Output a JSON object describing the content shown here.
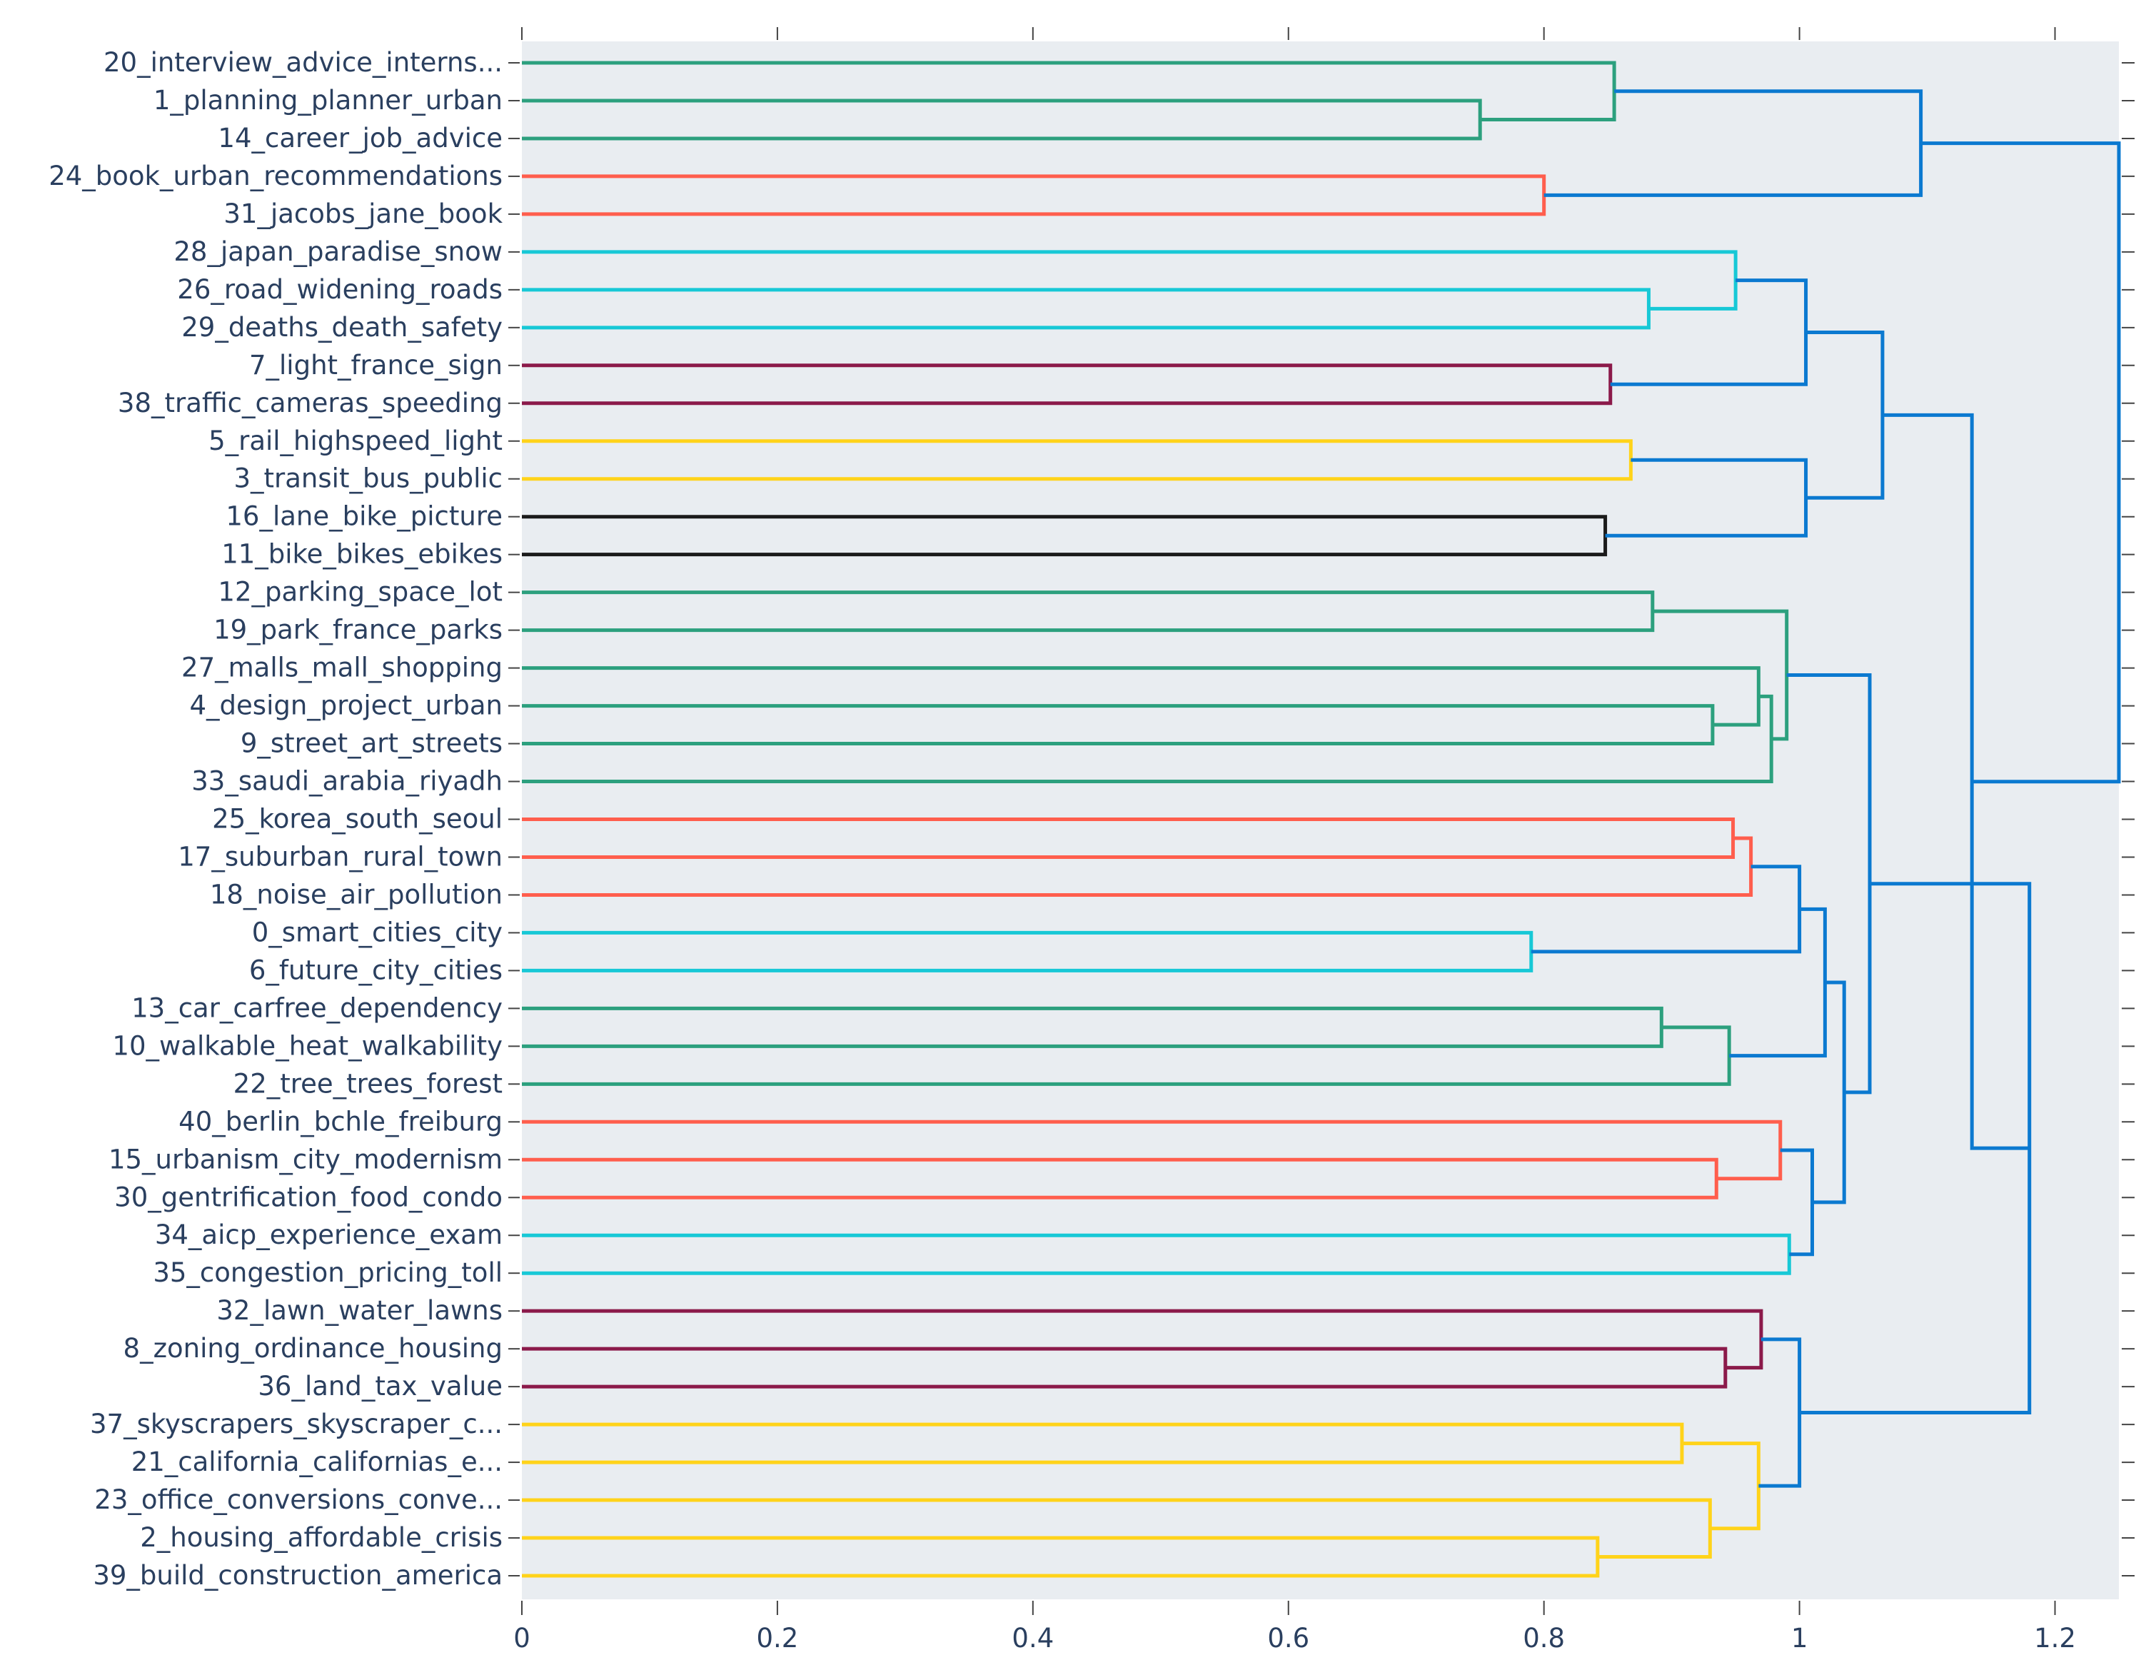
{
  "chart_data": {
    "type": "dendrogram",
    "orientation": "horizontal",
    "title": "",
    "xlabel": "",
    "ylabel": "",
    "xlim": [
      0,
      1.25
    ],
    "xticks": [
      0,
      0.2,
      0.4,
      0.6,
      0.8,
      1,
      1.2
    ],
    "xtick_labels": [
      "0",
      "0.2",
      "0.4",
      "0.6",
      "0.8",
      "1",
      "1.2"
    ],
    "leaves": [
      "20_interview_advice_interns...",
      "1_planning_planner_urban",
      "14_career_job_advice",
      "24_book_urban_recommendations",
      "31_jacobs_jane_book",
      "28_japan_paradise_snow",
      "26_road_widening_roads",
      "29_deaths_death_safety",
      "7_light_france_sign",
      "38_traffic_cameras_speeding",
      "5_rail_highspeed_light",
      "3_transit_bus_public",
      "16_lane_bike_picture",
      "11_bike_bikes_ebikes",
      "12_parking_space_lot",
      "19_park_france_parks",
      "27_malls_mall_shopping",
      "4_design_project_urban",
      "9_street_art_streets",
      "33_saudi_arabia_riyadh",
      "25_korea_south_seoul",
      "17_suburban_rural_town",
      "18_noise_air_pollution",
      "0_smart_cities_city",
      "6_future_city_cities",
      "13_car_carfree_dependency",
      "10_walkable_heat_walkability",
      "22_tree_trees_forest",
      "40_berlin_bchle_freiburg",
      "15_urbanism_city_modernism",
      "30_gentrification_food_condo",
      "34_aicp_experience_exam",
      "35_congestion_pricing_toll",
      "32_lawn_water_lawns",
      "8_zoning_ordinance_housing",
      "36_land_tax_value",
      "37_skyscrapers_skyscraper_c...",
      "21_california_californias_e...",
      "23_office_conversions_conve...",
      "2_housing_affordable_crisis",
      "39_build_construction_america"
    ],
    "colors": {
      "green": "#2ca07e",
      "red": "#ff5e4d",
      "cyan": "#17c8d6",
      "maroon": "#8b1a4a",
      "yellow": "#ffd31a",
      "black": "#1b1b1b",
      "blue": "#0b79d0",
      "plot_bg": "#e9edf1",
      "text": "#2a3f5f"
    },
    "merges": [
      {
        "id": "A",
        "left": 1,
        "right": 2,
        "height": 0.75,
        "color": "green"
      },
      {
        "id": "B",
        "left": 0,
        "right": "A",
        "height": 0.855,
        "color": "green"
      },
      {
        "id": "C",
        "left": 3,
        "right": 4,
        "height": 0.8,
        "color": "red"
      },
      {
        "id": "D",
        "left": "B",
        "right": "C",
        "height": 1.095,
        "color": "blue"
      },
      {
        "id": "E",
        "left": 6,
        "right": 7,
        "height": 0.882,
        "color": "cyan"
      },
      {
        "id": "F",
        "left": 5,
        "right": "E",
        "height": 0.95,
        "color": "cyan"
      },
      {
        "id": "G",
        "left": 8,
        "right": 9,
        "height": 0.852,
        "color": "maroon"
      },
      {
        "id": "H",
        "left": "F",
        "right": "G",
        "height": 1.005,
        "color": "blue"
      },
      {
        "id": "I",
        "left": 10,
        "right": 11,
        "height": 0.868,
        "color": "yellow"
      },
      {
        "id": "J",
        "left": 12,
        "right": 13,
        "height": 0.848,
        "color": "black"
      },
      {
        "id": "K",
        "left": "I",
        "right": "J",
        "height": 1.005,
        "color": "blue"
      },
      {
        "id": "L",
        "left": "H",
        "right": "K",
        "height": 1.065,
        "color": "blue"
      },
      {
        "id": "M",
        "left": 14,
        "right": 15,
        "height": 0.885,
        "color": "green"
      },
      {
        "id": "N",
        "left": 17,
        "right": 18,
        "height": 0.932,
        "color": "green"
      },
      {
        "id": "O",
        "left": 16,
        "right": "N",
        "height": 0.968,
        "color": "green"
      },
      {
        "id": "P",
        "left": "O",
        "right": 19,
        "height": 0.978,
        "color": "green"
      },
      {
        "id": "Q",
        "left": "M",
        "right": "P",
        "height": 0.99,
        "color": "green"
      },
      {
        "id": "R",
        "left": 20,
        "right": 21,
        "height": 0.948,
        "color": "red"
      },
      {
        "id": "S",
        "left": "R",
        "right": 22,
        "height": 0.962,
        "color": "red"
      },
      {
        "id": "T",
        "left": 23,
        "right": 24,
        "height": 0.79,
        "color": "cyan"
      },
      {
        "id": "U",
        "left": "S",
        "right": "T",
        "height": 1.0,
        "color": "blue"
      },
      {
        "id": "V",
        "left": 25,
        "right": 26,
        "height": 0.892,
        "color": "green"
      },
      {
        "id": "W",
        "left": "V",
        "right": 27,
        "height": 0.945,
        "color": "green"
      },
      {
        "id": "X",
        "left": "U",
        "right": "W",
        "height": 1.02,
        "color": "blue"
      },
      {
        "id": "Y",
        "left": 29,
        "right": 30,
        "height": 0.935,
        "color": "red"
      },
      {
        "id": "Z",
        "left": 28,
        "right": "Y",
        "height": 0.985,
        "color": "red"
      },
      {
        "id": "AA",
        "left": 31,
        "right": 32,
        "height": 0.992,
        "color": "cyan"
      },
      {
        "id": "AB",
        "left": "Z",
        "right": "AA",
        "height": 1.01,
        "color": "blue"
      },
      {
        "id": "AC",
        "left": "X",
        "right": "AB",
        "height": 1.035,
        "color": "blue"
      },
      {
        "id": "AD",
        "left": "Q",
        "right": "AC",
        "height": 1.055,
        "color": "blue"
      },
      {
        "id": "AE",
        "left": 34,
        "right": 35,
        "height": 0.942,
        "color": "maroon"
      },
      {
        "id": "AF",
        "left": 33,
        "right": "AE",
        "height": 0.97,
        "color": "maroon"
      },
      {
        "id": "AG",
        "left": 36,
        "right": 37,
        "height": 0.908,
        "color": "yellow"
      },
      {
        "id": "AH",
        "left": 39,
        "right": 40,
        "height": 0.842,
        "color": "yellow"
      },
      {
        "id": "AI",
        "left": 38,
        "right": "AH",
        "height": 0.93,
        "color": "yellow"
      },
      {
        "id": "AJ",
        "left": "AG",
        "right": "AI",
        "height": 0.968,
        "color": "yellow"
      },
      {
        "id": "AK",
        "left": "AF",
        "right": "AJ",
        "height": 1.0,
        "color": "blue"
      },
      {
        "id": "AL",
        "left": "AD",
        "right": "AK",
        "height": 1.18,
        "color": "blue"
      },
      {
        "id": "AM",
        "left": "L",
        "right": "AL",
        "height": 1.135,
        "color": "blue"
      },
      {
        "id": "AN",
        "left": "D",
        "right": "AM",
        "height": 1.25,
        "color": "blue"
      }
    ]
  }
}
